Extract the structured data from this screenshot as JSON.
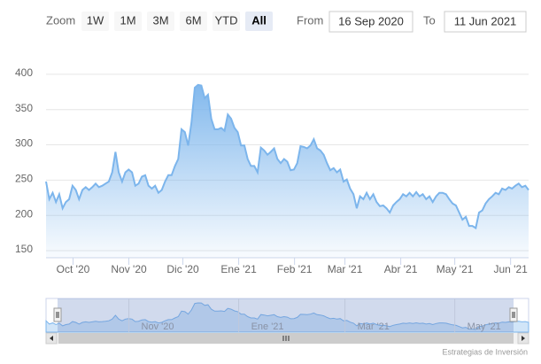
{
  "chart_data": {
    "type": "area",
    "range_selector": {
      "label": "Zoom",
      "buttons": [
        "1W",
        "1M",
        "3M",
        "6M",
        "YTD",
        "All"
      ],
      "selected": 5,
      "from_label": "From",
      "to_label": "To"
    },
    "xlim": [
      "16 Sep 2020",
      "11 Jun 2021"
    ],
    "xticks": [
      {
        "value": "2020-10-01",
        "label": "Oct '20"
      },
      {
        "value": "2020-11-01",
        "label": "Nov '20"
      },
      {
        "value": "2020-12-01",
        "label": "Dic '20"
      },
      {
        "value": "2021-01-01",
        "label": "Ene '21"
      },
      {
        "value": "2021-02-01",
        "label": "Feb '21"
      },
      {
        "value": "2021-03-01",
        "label": "Mar '21"
      },
      {
        "value": "2021-04-01",
        "label": "Abr '21"
      },
      {
        "value": "2021-05-01",
        "label": "May '21"
      },
      {
        "value": "2021-06-01",
        "label": "Jun '21"
      }
    ],
    "ylim": [
      140,
      445
    ],
    "yticks": [
      150,
      200,
      250,
      300,
      350,
      400
    ],
    "grid": true,
    "color": "#7cb5ec",
    "values": [
      248,
      223,
      232,
      219,
      230,
      210,
      219,
      223,
      242,
      236,
      223,
      236,
      240,
      236,
      240,
      245,
      240,
      242,
      245,
      248,
      261,
      290,
      261,
      248,
      261,
      265,
      261,
      242,
      245,
      255,
      257,
      242,
      238,
      242,
      232,
      236,
      248,
      257,
      257,
      270,
      280,
      322,
      318,
      299,
      331,
      381,
      385,
      384,
      366,
      371,
      337,
      322,
      322,
      324,
      320,
      343,
      337,
      324,
      318,
      299,
      299,
      280,
      270,
      270,
      261,
      296,
      292,
      286,
      290,
      295,
      280,
      274,
      280,
      276,
      264,
      265,
      274,
      298,
      297,
      295,
      299,
      308,
      295,
      292,
      286,
      274,
      264,
      267,
      261,
      265,
      248,
      251,
      238,
      230,
      210,
      227,
      223,
      232,
      223,
      230,
      219,
      213,
      214,
      210,
      204,
      214,
      219,
      223,
      230,
      227,
      232,
      227,
      233,
      227,
      230,
      223,
      227,
      219,
      227,
      232,
      232,
      230,
      223,
      217,
      214,
      204,
      194,
      198,
      185,
      185,
      182,
      204,
      207,
      217,
      223,
      227,
      232,
      230,
      238,
      236,
      240,
      238,
      242,
      245,
      240,
      242,
      236
    ],
    "navigator": {
      "xticks": [
        {
          "value": "2020-11-01",
          "label": "Nov '20"
        },
        {
          "value": "2021-01-01",
          "label": "Ene '21"
        },
        {
          "value": "2021-03-01",
          "label": "Mar '21"
        },
        {
          "value": "2021-05-01",
          "label": "May '21"
        }
      ]
    },
    "credits": "Estrategias de Inversión"
  }
}
